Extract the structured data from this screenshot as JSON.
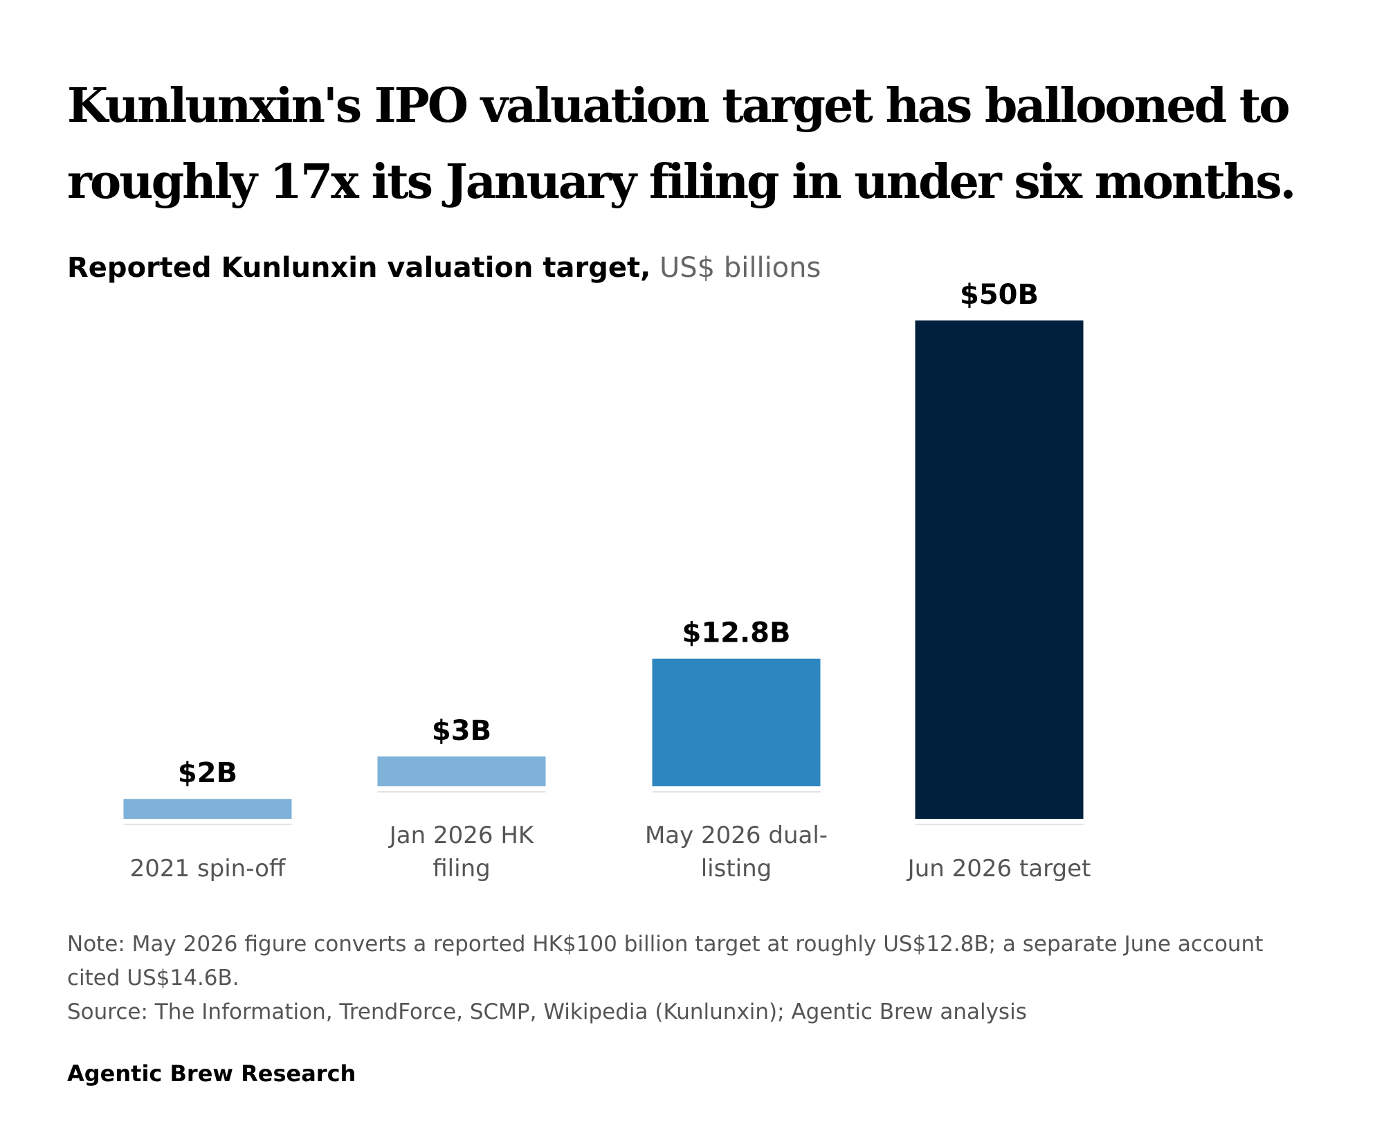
{
  "header": {
    "title": "Kunlunxin's IPO valuation target has ballooned to roughly 17x its January filing in under six months.",
    "subtitle_main": "Reported Kunlunxin valuation target,",
    "subtitle_unit": "US$ billions"
  },
  "chart_data": {
    "type": "bar",
    "title": "Reported Kunlunxin valuation target",
    "ylabel": "US$ billions",
    "categories": [
      "2021 spin-off",
      "Jan 2026 HK filing",
      "May 2026 dual-listing",
      "Jun 2026 target"
    ],
    "tick_labels": [
      [
        "2021 spin-off"
      ],
      [
        "Jan 2026 HK",
        "filing"
      ],
      [
        "May 2026 dual-",
        "listing"
      ],
      [
        "Jun 2026 target"
      ]
    ],
    "values": [
      2,
      3,
      12.8,
      50
    ],
    "data_labels": [
      "$2B",
      "$3B",
      "$12.8B",
      "$50B"
    ],
    "colors": [
      "#7fb2d8",
      "#7fb2d8",
      "#2e86c1",
      "#00203d"
    ],
    "ylim": [
      0,
      50
    ],
    "grid": false,
    "legend": "none"
  },
  "footer": {
    "note": "Note: May 2026 figure converts a reported HK$100 billion target at roughly US$12.8B; a separate June account cited US$14.6B.",
    "source": "Source: The Information, TrendForce, SCMP, Wikipedia (Kunlunxin); Agentic Brew analysis",
    "brand": "Agentic Brew Research"
  }
}
